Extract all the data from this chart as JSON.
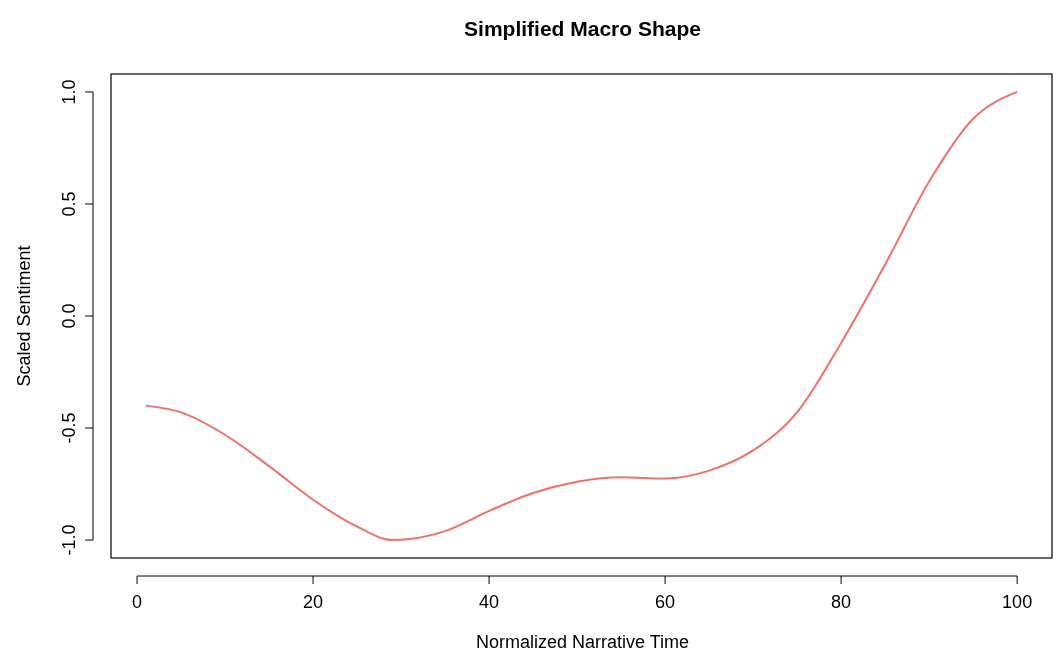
{
  "chart_data": {
    "type": "line",
    "title": "Simplified Macro Shape",
    "xlabel": "Normalized Narrative Time",
    "ylabel": "Scaled Sentiment",
    "x": [
      1,
      5,
      10,
      15,
      20,
      25,
      29,
      35,
      40,
      45,
      50,
      55,
      60,
      65,
      70,
      75,
      80,
      85,
      90,
      95,
      100
    ],
    "series": [
      {
        "color": "#f0706a",
        "values": [
          -0.4,
          -0.43,
          -0.53,
          -0.67,
          -0.82,
          -0.94,
          -1.0,
          -0.96,
          -0.87,
          -0.79,
          -0.74,
          -0.72,
          -0.725,
          -0.69,
          -0.6,
          -0.43,
          -0.12,
          0.23,
          0.6,
          0.88,
          1.0
        ]
      }
    ],
    "xlim": [
      -2.96,
      103.96
    ],
    "ylim": [
      -1.08,
      1.08
    ],
    "xticks": [
      0,
      20,
      40,
      60,
      80,
      100
    ],
    "yticks": [
      {
        "value": -1,
        "label": "-1.0"
      },
      {
        "value": -0.5,
        "label": "-0.5"
      },
      {
        "value": 0,
        "label": "0.0"
      },
      {
        "value": 0.5,
        "label": "0.5"
      },
      {
        "value": 1,
        "label": "1.0"
      }
    ],
    "grid": false,
    "marker": "none",
    "line_style": "solid"
  }
}
